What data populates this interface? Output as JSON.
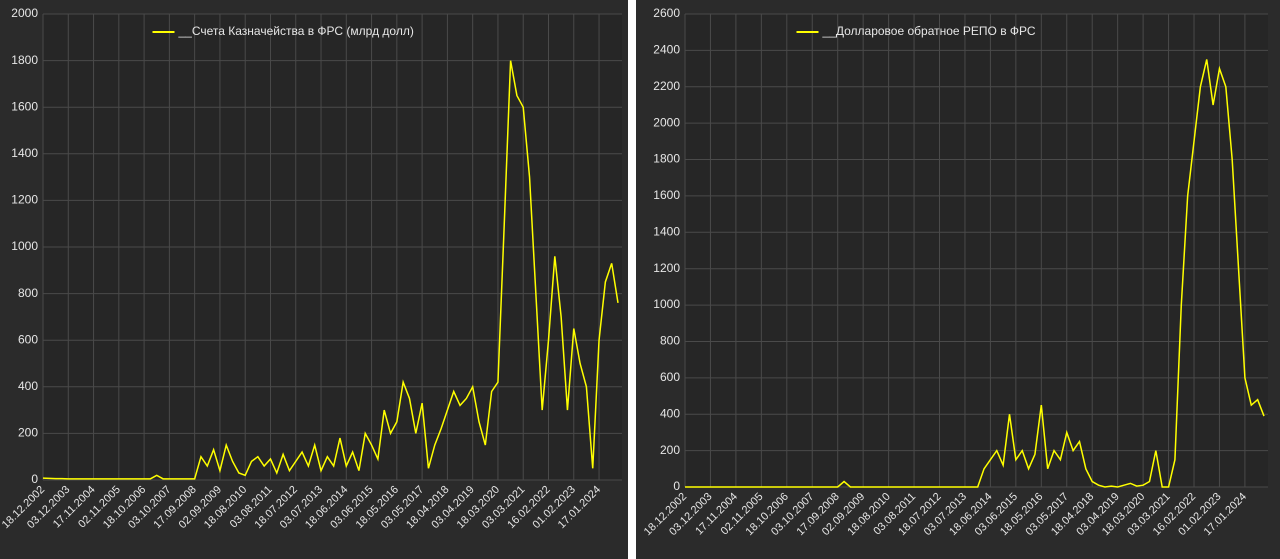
{
  "chart_data": [
    {
      "type": "line",
      "grid": true,
      "legend": "top",
      "categories": [
        "18.12.2002",
        null,
        null,
        null,
        "03.12.2003",
        null,
        null,
        null,
        "17.11.2004",
        null,
        null,
        null,
        "02.11.2005",
        null,
        null,
        null,
        "18.10.2006",
        null,
        null,
        null,
        "03.10.2007",
        null,
        null,
        null,
        "17.09.2008",
        null,
        null,
        null,
        "02.09.2009",
        null,
        null,
        null,
        "18.08.2010",
        null,
        null,
        null,
        "03.08.2011",
        null,
        null,
        null,
        "18.07.2012",
        null,
        null,
        null,
        "03.07.2013",
        null,
        null,
        null,
        "18.06.2014",
        null,
        null,
        null,
        "03.06.2015",
        null,
        null,
        null,
        "18.05.2016",
        null,
        null,
        null,
        "03.05.2017",
        null,
        null,
        null,
        "18.04.2018",
        null,
        null,
        null,
        "03.04.2019",
        null,
        null,
        null,
        "18.03.2020",
        null,
        null,
        null,
        "03.03.2021",
        null,
        null,
        null,
        "16.02.2022",
        null,
        null,
        null,
        "01.02.2023",
        null,
        null,
        null,
        "17.01.2024",
        null,
        null,
        null
      ],
      "series": [
        {
          "name": "__Счета Казначейства в ФРС (млрд долл)",
          "color": "#ffff00",
          "values": [
            8,
            7,
            6,
            6,
            5,
            5,
            5,
            5,
            5,
            5,
            5,
            5,
            5,
            5,
            5,
            5,
            5,
            5,
            20,
            5,
            5,
            5,
            5,
            5,
            5,
            100,
            60,
            130,
            40,
            150,
            80,
            30,
            20,
            80,
            100,
            60,
            90,
            30,
            110,
            40,
            80,
            120,
            60,
            150,
            40,
            100,
            60,
            180,
            60,
            120,
            40,
            200,
            150,
            90,
            300,
            200,
            250,
            420,
            350,
            200,
            330,
            50,
            150,
            220,
            300,
            380,
            320,
            350,
            400,
            250,
            150,
            380,
            420,
            1100,
            1800,
            1650,
            1600,
            1300,
            800,
            300,
            600,
            960,
            700,
            300,
            650,
            500,
            400,
            50,
            600,
            850,
            930,
            760
          ]
        }
      ],
      "ylim": [
        0,
        2000
      ],
      "yticks": [
        0,
        200,
        400,
        600,
        800,
        1000,
        1200,
        1400,
        1600,
        1800,
        2000
      ]
    },
    {
      "type": "line",
      "grid": true,
      "legend": "top",
      "categories": [
        "18.12.2002",
        null,
        null,
        null,
        "03.12.2003",
        null,
        null,
        null,
        "17.11.2004",
        null,
        null,
        null,
        "02.11.2005",
        null,
        null,
        null,
        "18.10.2006",
        null,
        null,
        null,
        "03.10.2007",
        null,
        null,
        null,
        "17.09.2008",
        null,
        null,
        null,
        "02.09.2009",
        null,
        null,
        null,
        "18.08.2010",
        null,
        null,
        null,
        "03.08.2011",
        null,
        null,
        null,
        "18.07.2012",
        null,
        null,
        null,
        "03.07.2013",
        null,
        null,
        null,
        "18.06.2014",
        null,
        null,
        null,
        "03.06.2015",
        null,
        null,
        null,
        "18.05.2016",
        null,
        null,
        null,
        "03.05.2017",
        null,
        null,
        null,
        "18.04.2018",
        null,
        null,
        null,
        "03.04.2019",
        null,
        null,
        null,
        "18.03.2020",
        null,
        null,
        null,
        "03.03.2021",
        null,
        null,
        null,
        "16.02.2022",
        null,
        null,
        null,
        "01.02.2023",
        null,
        null,
        null,
        "17.01.2024",
        null,
        null,
        null
      ],
      "series": [
        {
          "name": "__Долларовое обратное РЕПО в ФРС",
          "color": "#ffff00",
          "values": [
            0,
            0,
            0,
            0,
            0,
            0,
            0,
            0,
            0,
            0,
            0,
            0,
            0,
            0,
            0,
            0,
            0,
            0,
            0,
            0,
            0,
            0,
            0,
            0,
            0,
            30,
            0,
            0,
            0,
            0,
            0,
            0,
            0,
            0,
            0,
            0,
            0,
            0,
            0,
            0,
            0,
            0,
            0,
            0,
            0,
            0,
            0,
            100,
            150,
            200,
            120,
            400,
            150,
            200,
            100,
            180,
            450,
            100,
            200,
            150,
            300,
            200,
            250,
            100,
            30,
            10,
            0,
            5,
            0,
            10,
            20,
            5,
            10,
            30,
            200,
            0,
            0,
            150,
            1000,
            1600,
            1900,
            2200,
            2350,
            2100,
            2300,
            2200,
            1800,
            1200,
            600,
            450,
            480,
            390
          ]
        }
      ],
      "ylim": [
        0,
        2600
      ],
      "yticks": [
        0,
        200,
        400,
        600,
        800,
        1000,
        1200,
        1400,
        1600,
        1800,
        2000,
        2200,
        2400,
        2600
      ]
    }
  ]
}
